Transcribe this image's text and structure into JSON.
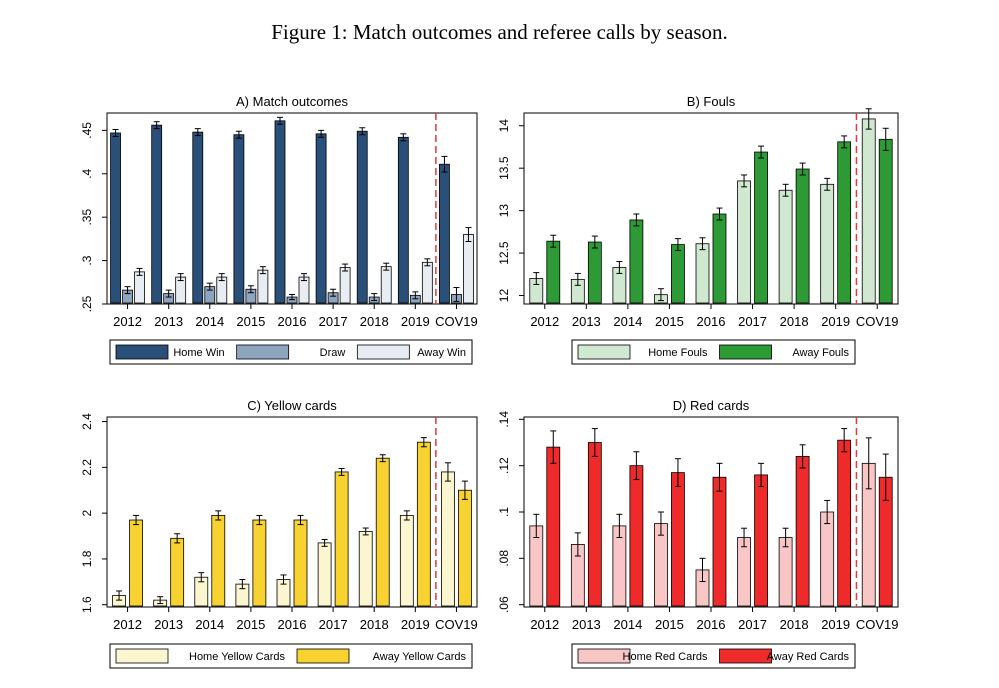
{
  "figure_title": "Figure 1: Match outcomes and referee calls by season.",
  "chart_data": [
    {
      "type": "bar",
      "title": "A) Match outcomes",
      "categories": [
        "2012",
        "2013",
        "2014",
        "2015",
        "2016",
        "2017",
        "2018",
        "2019",
        "COV19"
      ],
      "ylim": [
        0.25,
        0.47
      ],
      "yticks": [
        0.25,
        0.3,
        0.35,
        0.4,
        0.45
      ],
      "ytick_labels": [
        ".25",
        ".3",
        ".35",
        ".4",
        ".45"
      ],
      "xlabel": "",
      "ylabel": "",
      "covid_divider": true,
      "series": [
        {
          "name": "Home Win",
          "color": "#2a4f78",
          "values": [
            0.447,
            0.456,
            0.448,
            0.445,
            0.461,
            0.446,
            0.449,
            0.442,
            0.411
          ],
          "err": [
            0.004,
            0.004,
            0.004,
            0.004,
            0.004,
            0.004,
            0.004,
            0.004,
            0.009
          ]
        },
        {
          "name": "Draw",
          "color": "#8ea5c0",
          "values": [
            0.266,
            0.262,
            0.27,
            0.267,
            0.258,
            0.263,
            0.258,
            0.26,
            0.261
          ],
          "err": [
            0.004,
            0.004,
            0.004,
            0.004,
            0.003,
            0.004,
            0.004,
            0.004,
            0.008
          ]
        },
        {
          "name": "Away Win",
          "color": "#e8edf3",
          "values": [
            0.287,
            0.281,
            0.281,
            0.289,
            0.281,
            0.292,
            0.293,
            0.298,
            0.33
          ],
          "err": [
            0.004,
            0.004,
            0.004,
            0.004,
            0.004,
            0.004,
            0.004,
            0.004,
            0.008
          ]
        }
      ]
    },
    {
      "type": "bar",
      "title": "B) Fouls",
      "categories": [
        "2012",
        "2013",
        "2014",
        "2015",
        "2016",
        "2017",
        "2018",
        "2019",
        "COV19"
      ],
      "ylim": [
        11.9,
        14.15
      ],
      "yticks": [
        12,
        12.5,
        13,
        13.5,
        14
      ],
      "ytick_labels": [
        "12",
        "12.5",
        "13",
        "13.5",
        "14"
      ],
      "xlabel": "",
      "ylabel": "",
      "covid_divider": true,
      "series": [
        {
          "name": "Home Fouls",
          "color": "#cfe8cf",
          "values": [
            12.2,
            12.19,
            12.33,
            12.01,
            12.61,
            13.35,
            13.24,
            13.31,
            14.08
          ],
          "err": [
            0.07,
            0.07,
            0.07,
            0.07,
            0.07,
            0.07,
            0.07,
            0.07,
            0.12
          ]
        },
        {
          "name": "Away Fouls",
          "color": "#2e9a35",
          "values": [
            12.64,
            12.63,
            12.89,
            12.6,
            12.96,
            13.69,
            13.49,
            13.81,
            13.84
          ],
          "err": [
            0.07,
            0.07,
            0.07,
            0.07,
            0.07,
            0.07,
            0.07,
            0.07,
            0.13
          ]
        }
      ]
    },
    {
      "type": "bar",
      "title": "C) Yellow cards",
      "categories": [
        "2012",
        "2013",
        "2014",
        "2015",
        "2016",
        "2017",
        "2018",
        "2019",
        "COV19"
      ],
      "ylim": [
        1.59,
        2.42
      ],
      "yticks": [
        1.6,
        1.8,
        2,
        2.2,
        2.4
      ],
      "ytick_labels": [
        "1.6",
        "1.8",
        "2",
        "2.2",
        "2.4"
      ],
      "xlabel": "",
      "ylabel": "",
      "covid_divider": true,
      "series": [
        {
          "name": "Home Yellow Cards",
          "color": "#fbf6cf",
          "values": [
            1.64,
            1.62,
            1.72,
            1.69,
            1.71,
            1.87,
            1.92,
            1.99,
            2.18
          ],
          "err": [
            0.02,
            0.015,
            0.02,
            0.02,
            0.02,
            0.015,
            0.015,
            0.02,
            0.04
          ]
        },
        {
          "name": "Away Yellow Cards",
          "color": "#f7d230",
          "values": [
            1.97,
            1.89,
            1.99,
            1.97,
            1.97,
            2.18,
            2.24,
            2.31,
            2.1
          ],
          "err": [
            0.02,
            0.02,
            0.02,
            0.02,
            0.02,
            0.015,
            0.015,
            0.02,
            0.04
          ]
        }
      ]
    },
    {
      "type": "bar",
      "title": "D) Red cards",
      "categories": [
        "2012",
        "2013",
        "2014",
        "2015",
        "2016",
        "2017",
        "2018",
        "2019",
        "COV19"
      ],
      "ylim": [
        0.059,
        0.141
      ],
      "yticks": [
        0.06,
        0.08,
        0.1,
        0.12,
        0.14
      ],
      "ytick_labels": [
        ".06",
        ".08",
        ".1",
        ".12",
        ".14"
      ],
      "xlabel": "",
      "ylabel": "",
      "covid_divider": true,
      "series": [
        {
          "name": "Home Red Cards",
          "color": "#f9c6c6",
          "values": [
            0.094,
            0.086,
            0.094,
            0.095,
            0.075,
            0.089,
            0.089,
            0.1,
            0.121
          ],
          "err": [
            0.005,
            0.005,
            0.005,
            0.005,
            0.005,
            0.004,
            0.004,
            0.005,
            0.011
          ]
        },
        {
          "name": "Away Red Cards",
          "color": "#ee2a2a",
          "values": [
            0.128,
            0.13,
            0.12,
            0.117,
            0.115,
            0.116,
            0.124,
            0.131,
            0.115
          ],
          "err": [
            0.007,
            0.006,
            0.006,
            0.006,
            0.006,
            0.005,
            0.005,
            0.005,
            0.01
          ]
        }
      ]
    }
  ]
}
